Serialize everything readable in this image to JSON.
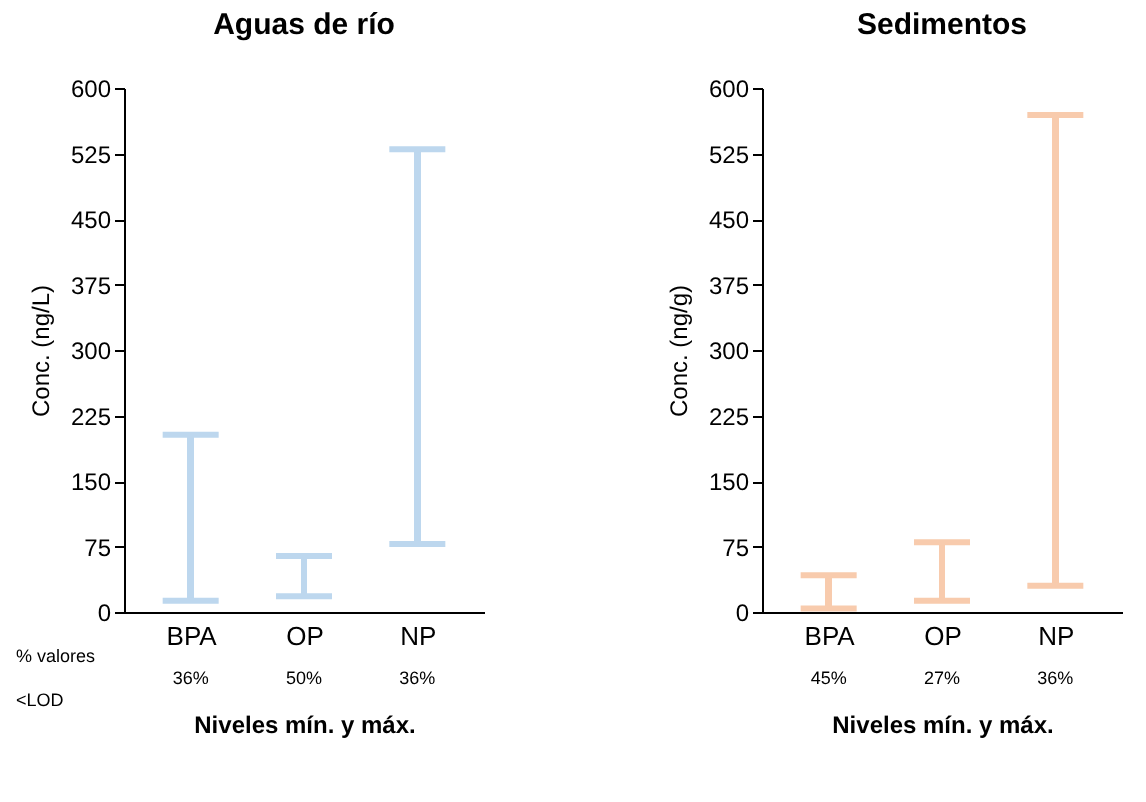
{
  "chart_data": [
    {
      "type": "bar",
      "title": "Aguas de río",
      "xlabel": "Niveles mín. y máx.",
      "ylabel": "Conc. (ng/L)",
      "categories": [
        "BPA",
        "OP",
        "NP"
      ],
      "base": [
        13,
        18,
        78
      ],
      "values": [
        190,
        46,
        452
      ],
      "color": "#bdd7ee",
      "ylim": [
        0,
        600
      ],
      "yticks": [
        0,
        75,
        150,
        225,
        300,
        375,
        450,
        525,
        600
      ],
      "grid": false,
      "annotations": [
        "% valores <LOD",
        "36%",
        "50%",
        "36%"
      ]
    },
    {
      "type": "bar",
      "title": "Sedimentos",
      "xlabel": "Niveles mín. y máx.",
      "ylabel": "Conc. (ng/g)",
      "categories": [
        "BPA",
        "OP",
        "NP"
      ],
      "base": [
        4,
        13,
        30
      ],
      "values": [
        38,
        67,
        539
      ],
      "color": "#f8cbad",
      "ylim": [
        0,
        600
      ],
      "yticks": [
        0,
        75,
        150,
        225,
        300,
        375,
        450,
        525,
        600
      ],
      "grid": false,
      "annotations": [
        "45%",
        "27%",
        "36%"
      ]
    }
  ]
}
